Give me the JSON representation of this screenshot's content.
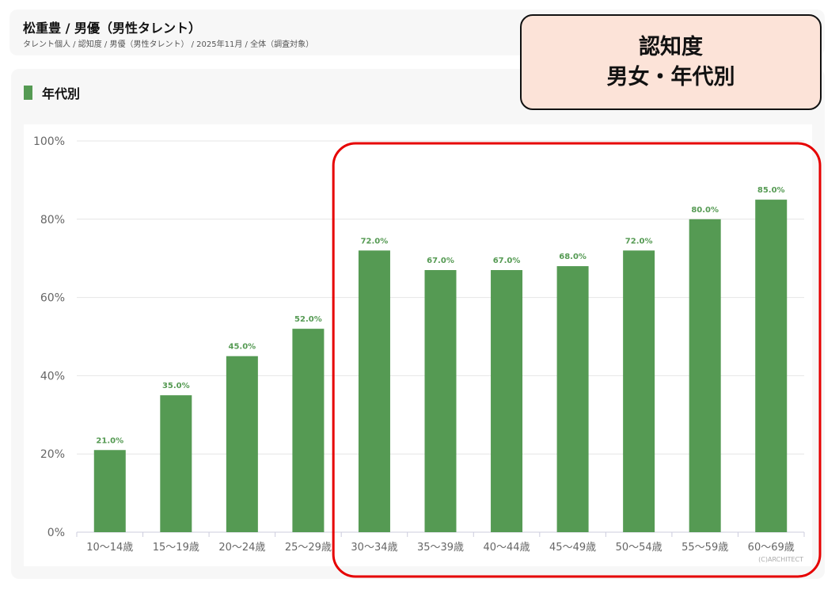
{
  "header": {
    "title": "松重豊 / 男優（男性タレント）",
    "breadcrumb": "タレント個人 / 認知度 / 男優（男性タレント） / 2025年11月 / 全体（調査対象）"
  },
  "section": {
    "title": "年代別"
  },
  "callout": {
    "line1": "認知度",
    "line2": "男女・年代別"
  },
  "credit": "(C)ARCHITECT",
  "colors": {
    "bar": "#559a53",
    "label": "#559a53",
    "highlight": "#e60000",
    "callout_bg": "#fce3d8"
  },
  "chart_data": {
    "type": "bar",
    "categories": [
      "10〜14歳",
      "15〜19歳",
      "20〜24歳",
      "25〜29歳",
      "30〜34歳",
      "35〜39歳",
      "40〜44歳",
      "45〜49歳",
      "50〜54歳",
      "55〜59歳",
      "60〜69歳"
    ],
    "values": [
      21.0,
      35.0,
      45.0,
      52.0,
      72.0,
      67.0,
      67.0,
      68.0,
      72.0,
      80.0,
      85.0
    ],
    "data_labels": [
      "21.0%",
      "35.0%",
      "45.0%",
      "52.0%",
      "72.0%",
      "67.0%",
      "67.0%",
      "68.0%",
      "72.0%",
      "80.0%",
      "85.0%"
    ],
    "yticks": [
      "0%",
      "20%",
      "40%",
      "60%",
      "80%",
      "100%"
    ],
    "ylim": [
      0,
      100
    ],
    "grid": true,
    "highlighted_categories": [
      "30〜34歳",
      "35〜39歳",
      "40〜44歳",
      "45〜49歳",
      "50〜54歳",
      "55〜59歳",
      "60〜69歳"
    ]
  }
}
